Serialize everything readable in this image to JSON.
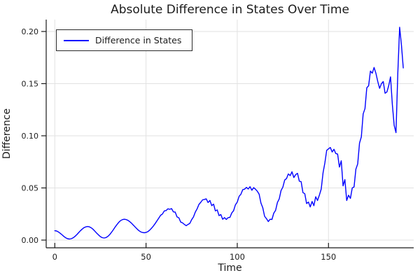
{
  "title": "Absolute Difference in States Over Time",
  "legend": {
    "label": "Difference in States"
  },
  "colors": {
    "line": "#0000ff",
    "grid": "#e2e2e2",
    "spine": "#1a1a1a",
    "text": "#1b1b1b",
    "legend_border": "#2a2a2a",
    "background": "#ffffff"
  },
  "chart_data": {
    "type": "line",
    "title": "Absolute Difference in States Over Time",
    "xlabel": "Time",
    "ylabel": "Difference",
    "xlim": [
      -4.72,
      196.7
    ],
    "ylim": [
      -0.0074,
      0.2114
    ],
    "xticks": [
      0,
      50,
      100,
      150
    ],
    "xtick_labels": [
      "0",
      "50",
      "100",
      "150"
    ],
    "yticks": [
      0.0,
      0.05,
      0.1,
      0.15,
      0.2
    ],
    "ytick_labels": [
      "0.00",
      "0.05",
      "0.10",
      "0.15",
      "0.20"
    ],
    "grid": true,
    "legend_position": "top-left",
    "series": [
      {
        "name": "Difference in States",
        "color": "#0000ff",
        "x_start": 0,
        "x_step": 1,
        "y": [
          0.009,
          0.0087,
          0.0078,
          0.0065,
          0.005,
          0.0035,
          0.0022,
          0.0013,
          0.001,
          0.0013,
          0.0021,
          0.0035,
          0.0051,
          0.007,
          0.0089,
          0.0105,
          0.0119,
          0.0127,
          0.013,
          0.0127,
          0.0117,
          0.0103,
          0.0085,
          0.0065,
          0.0048,
          0.0033,
          0.0023,
          0.002,
          0.0024,
          0.0034,
          0.0051,
          0.0073,
          0.0097,
          0.0123,
          0.0147,
          0.0169,
          0.0186,
          0.0196,
          0.02,
          0.0197,
          0.019,
          0.0178,
          0.0162,
          0.0144,
          0.0126,
          0.0108,
          0.0092,
          0.008,
          0.0073,
          0.007,
          0.0073,
          0.0081,
          0.0095,
          0.0113,
          0.0135,
          0.0159,
          0.0185,
          0.0211,
          0.0238,
          0.025,
          0.028,
          0.0283,
          0.03,
          0.0295,
          0.0302,
          0.027,
          0.0268,
          0.0222,
          0.0214,
          0.0172,
          0.0165,
          0.015,
          0.0138,
          0.015,
          0.016,
          0.0196,
          0.0222,
          0.0268,
          0.03,
          0.0342,
          0.0362,
          0.0386,
          0.039,
          0.0395,
          0.036,
          0.038,
          0.033,
          0.0345,
          0.028,
          0.029,
          0.0235,
          0.0245,
          0.02,
          0.0215,
          0.0198,
          0.0215,
          0.0218,
          0.026,
          0.0282,
          0.0338,
          0.0365,
          0.042,
          0.044,
          0.0484,
          0.0488,
          0.0505,
          0.049,
          0.0512,
          0.0478,
          0.0503,
          0.0488,
          0.0468,
          0.044,
          0.0355,
          0.031,
          0.0228,
          0.0205,
          0.0178,
          0.02,
          0.0198,
          0.0258,
          0.0285,
          0.036,
          0.0395,
          0.0475,
          0.0508,
          0.0576,
          0.059,
          0.0634,
          0.0618,
          0.0655,
          0.06,
          0.0628,
          0.064,
          0.0565,
          0.056,
          0.0455,
          0.0445,
          0.035,
          0.0365,
          0.0318,
          0.037,
          0.033,
          0.0415,
          0.038,
          0.043,
          0.049,
          0.0645,
          0.074,
          0.086,
          0.0875,
          0.0888,
          0.0845,
          0.087,
          0.083,
          0.0825,
          0.07,
          0.076,
          0.052,
          0.058,
          0.038,
          0.043,
          0.04,
          0.05,
          0.051,
          0.068,
          0.073,
          0.093,
          0.099,
          0.121,
          0.126,
          0.146,
          0.148,
          0.162,
          0.16,
          0.1655,
          0.16,
          0.152,
          0.1455,
          0.15,
          0.152,
          0.1408,
          0.142,
          0.148,
          0.1565,
          0.13,
          0.11,
          0.103,
          0.16,
          0.204,
          0.187,
          0.165
        ]
      }
    ]
  }
}
